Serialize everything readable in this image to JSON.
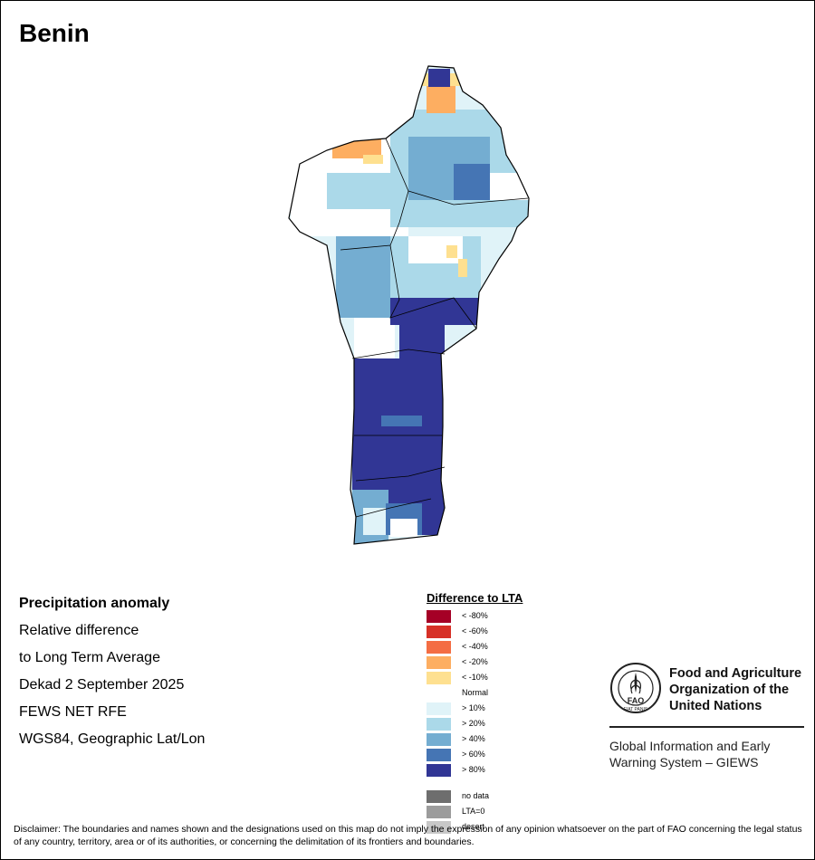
{
  "title": "Benin",
  "info": {
    "heading": "Precipitation anomaly",
    "line1": "Relative difference",
    "line2": "to Long Term Average",
    "period": "Dekad 2 September 2025",
    "source": "FEWS NET RFE",
    "projection": "WGS84, Geographic Lat/Lon"
  },
  "legend": {
    "title": "Difference to LTA",
    "classes": [
      {
        "label": "< -80%",
        "color": "#a50026"
      },
      {
        "label": "< -60%",
        "color": "#d73027"
      },
      {
        "label": "< -40%",
        "color": "#f46d43"
      },
      {
        "label": "< -20%",
        "color": "#fdae61"
      },
      {
        "label": "< -10%",
        "color": "#fee090"
      },
      {
        "label": "Normal",
        "color": "#ffffff"
      },
      {
        "label": "> 10%",
        "color": "#e0f3f8"
      },
      {
        "label": "> 20%",
        "color": "#abd9e9"
      },
      {
        "label": "> 40%",
        "color": "#74add1"
      },
      {
        "label": "> 60%",
        "color": "#4575b4"
      },
      {
        "label": "> 80%",
        "color": "#313695"
      }
    ],
    "extra": [
      {
        "label": "no data",
        "color": "#6e6e6e"
      },
      {
        "label": "LTA=0",
        "color": "#9c9c9c"
      },
      {
        "label": "desert",
        "color": "#c8c8c8"
      }
    ]
  },
  "fao": {
    "name_line1": "Food and Agriculture",
    "name_line2": "Organization of the",
    "name_line3": "United Nations",
    "logo_text": "FAO",
    "motto": "FIAT PANIS",
    "system_line1": "Global Information and Early",
    "system_line2": "Warning System – GIEWS"
  },
  "disclaimer": "Disclaimer: The boundaries and names shown and the designations used on this map do not imply the expression of any opinion whatsoever on the part of FAO concerning the legal status of any country, territory, area or of its authorities, or concerning the delimitation of its frontiers and boundaries."
}
